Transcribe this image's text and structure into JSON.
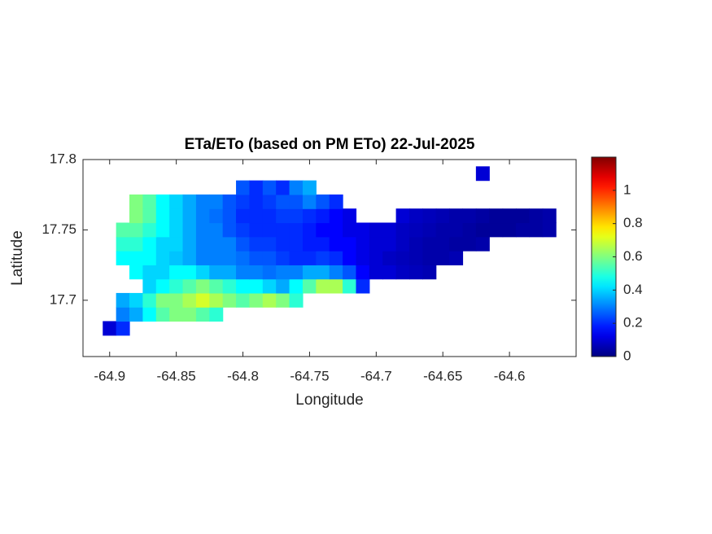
{
  "chart_data": {
    "type": "raster-map",
    "title": "ETa/ETo (based on PM ETo) 22-Jul-2025",
    "xlabel": "Longitude",
    "ylabel": "Latitude",
    "xlim": [
      -64.92,
      -64.55
    ],
    "ylim": [
      17.66,
      17.8
    ],
    "xticks": [
      -64.9,
      -64.85,
      -64.8,
      -64.75,
      -64.7,
      -64.65,
      -64.6
    ],
    "yticks": [
      17.7,
      17.75,
      17.8
    ],
    "colormap": "jet",
    "clim": [
      0,
      1.2
    ],
    "cticks": [
      0,
      0.2,
      0.4,
      0.6,
      0.8,
      1
    ],
    "x": [
      -64.9,
      -64.89,
      -64.88,
      -64.87,
      -64.86,
      -64.85,
      -64.84,
      -64.83,
      -64.82,
      -64.81,
      -64.8,
      -64.79,
      -64.78,
      -64.77,
      -64.76,
      -64.75,
      -64.74,
      -64.73,
      -64.72,
      -64.71,
      -64.7,
      -64.69,
      -64.68,
      -64.67,
      -64.66,
      -64.65,
      -64.64,
      -64.63,
      -64.62,
      -64.61,
      -64.6,
      -64.59,
      -64.58,
      -64.57,
      -64.56
    ],
    "y": [
      17.68,
      17.69,
      17.7,
      17.71,
      17.72,
      17.73,
      17.74,
      17.75,
      17.76,
      17.77,
      17.78,
      17.79
    ],
    "z": [
      [
        0.1,
        0.2,
        null,
        null,
        null,
        null,
        null,
        null,
        null,
        null,
        null,
        null,
        null,
        null,
        null,
        null,
        null,
        null,
        null,
        null,
        null,
        null,
        null,
        null,
        null,
        null,
        null,
        null,
        null,
        null,
        null,
        null,
        null,
        null,
        null
      ],
      [
        null,
        0.3,
        0.35,
        0.45,
        0.55,
        0.6,
        0.6,
        0.55,
        0.5,
        null,
        null,
        null,
        null,
        null,
        null,
        null,
        null,
        null,
        null,
        null,
        null,
        null,
        null,
        null,
        null,
        null,
        null,
        null,
        null,
        null,
        null,
        null,
        null,
        null,
        null
      ],
      [
        null,
        0.35,
        0.4,
        0.5,
        0.6,
        0.6,
        0.65,
        0.7,
        0.65,
        0.6,
        0.55,
        0.6,
        0.65,
        0.6,
        0.5,
        null,
        null,
        null,
        null,
        null,
        null,
        null,
        null,
        null,
        null,
        null,
        null,
        null,
        null,
        null,
        null,
        null,
        null,
        null,
        null
      ],
      [
        null,
        null,
        null,
        0.4,
        0.45,
        0.5,
        0.55,
        0.6,
        0.55,
        0.5,
        0.45,
        0.45,
        0.4,
        0.35,
        0.45,
        0.55,
        0.65,
        0.65,
        0.5,
        0.2,
        null,
        null,
        null,
        null,
        null,
        null,
        null,
        null,
        null,
        null,
        null,
        null,
        null,
        null,
        null
      ],
      [
        null,
        null,
        0.45,
        0.4,
        0.4,
        0.45,
        0.45,
        0.4,
        0.35,
        0.35,
        0.3,
        0.3,
        0.28,
        0.3,
        0.3,
        0.35,
        0.35,
        0.3,
        0.25,
        0.15,
        0.1,
        0.1,
        0.08,
        0.07,
        0.06,
        null,
        null,
        null,
        null,
        null,
        null,
        null,
        null,
        null,
        null
      ],
      [
        null,
        0.45,
        0.45,
        0.45,
        0.4,
        0.38,
        0.35,
        0.3,
        0.3,
        0.3,
        0.28,
        0.25,
        0.25,
        0.22,
        0.2,
        0.2,
        0.22,
        0.2,
        0.15,
        0.12,
        0.1,
        0.08,
        0.07,
        0.06,
        0.05,
        0.05,
        0.06,
        null,
        null,
        null,
        null,
        null,
        null,
        null,
        null
      ],
      [
        null,
        0.5,
        0.5,
        0.45,
        0.4,
        0.4,
        0.35,
        0.3,
        0.3,
        0.3,
        0.25,
        0.22,
        0.22,
        0.2,
        0.2,
        0.18,
        0.18,
        0.15,
        0.15,
        0.12,
        0.1,
        0.1,
        0.08,
        0.06,
        0.05,
        0.05,
        0.04,
        0.04,
        0.05,
        null,
        null,
        null,
        null,
        null,
        null
      ],
      [
        null,
        0.55,
        0.55,
        0.5,
        0.45,
        0.4,
        0.35,
        0.3,
        0.3,
        0.25,
        0.22,
        0.2,
        0.2,
        0.2,
        0.2,
        0.18,
        0.15,
        0.15,
        0.12,
        0.12,
        0.1,
        0.1,
        0.08,
        0.07,
        0.06,
        0.05,
        0.05,
        0.04,
        0.03,
        0.03,
        0.03,
        0.04,
        0.04,
        0.05,
        null
      ],
      [
        null,
        null,
        0.6,
        0.55,
        0.45,
        0.4,
        0.35,
        0.3,
        0.28,
        0.25,
        0.2,
        0.2,
        0.2,
        0.22,
        0.22,
        0.2,
        0.18,
        0.15,
        0.12,
        null,
        null,
        null,
        0.1,
        0.08,
        0.07,
        0.06,
        0.05,
        0.05,
        0.04,
        0.03,
        0.03,
        0.03,
        0.04,
        0.05,
        null
      ],
      [
        null,
        null,
        0.6,
        0.55,
        0.45,
        0.4,
        0.35,
        0.3,
        0.3,
        0.25,
        0.22,
        0.2,
        0.22,
        0.25,
        0.25,
        0.3,
        0.25,
        0.2,
        null,
        null,
        null,
        null,
        null,
        null,
        null,
        null,
        null,
        null,
        null,
        null,
        null,
        null,
        null,
        null,
        null
      ],
      [
        null,
        null,
        null,
        null,
        null,
        null,
        null,
        null,
        null,
        null,
        0.25,
        0.2,
        0.25,
        0.2,
        0.3,
        0.35,
        null,
        null,
        null,
        null,
        null,
        null,
        null,
        null,
        null,
        null,
        null,
        null,
        null,
        null,
        null,
        null,
        null,
        null,
        null
      ],
      [
        null,
        null,
        null,
        null,
        null,
        null,
        null,
        null,
        null,
        null,
        null,
        null,
        null,
        null,
        null,
        null,
        null,
        null,
        null,
        null,
        null,
        null,
        null,
        null,
        null,
        null,
        null,
        null,
        0.1,
        null,
        null,
        null,
        null,
        null,
        null
      ]
    ]
  }
}
